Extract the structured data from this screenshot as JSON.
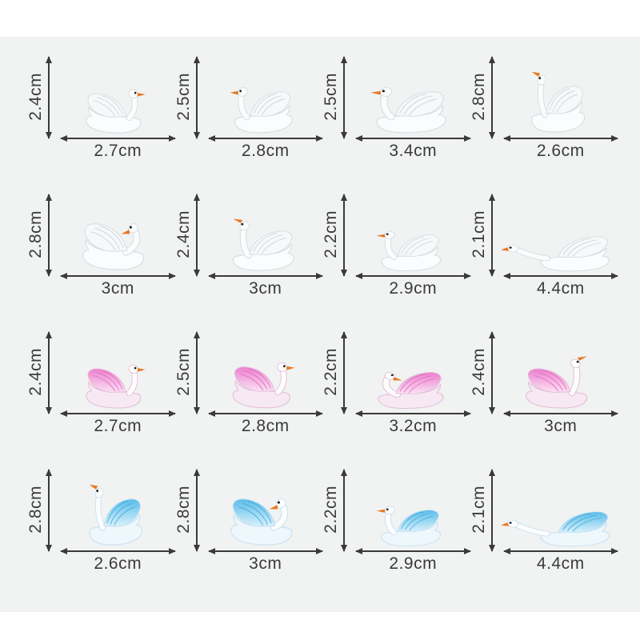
{
  "page": {
    "background": "#ffffff",
    "panel_background": "#f1f2f2"
  },
  "colors": {
    "label_text": "#3b3b3b",
    "arrow": "#3a3a3a",
    "beak_orange": "#e9751f",
    "eye_black": "#1b1b1b",
    "head_white": "#fdfdfe",
    "white_body": "#fbfcfd",
    "white_outline": "#d7dde1",
    "white_wing": "#f6f8fa",
    "white_feather": "#ccd4da",
    "pink_body": "#f6e9f3",
    "pink_outline": "#e3bed9",
    "pink_wing_top": "#ec7fce",
    "pink_wing_bottom": "#fbe2f3",
    "pink_feather": "#e06cc0",
    "blue_body": "#eef7fc",
    "blue_outline": "#c6e2f1",
    "blue_wing_top": "#58bce9",
    "blue_wing_bottom": "#daf1fb",
    "blue_feather": "#45abdd"
  },
  "figure": {
    "description": "Miniature swan figurine size chart, 4 x 4 grid with height and width dimensions",
    "unit": "cm",
    "rows": [
      {
        "variant": "white",
        "swans": [
          {
            "height_label": "2.4cm",
            "width_label": "2.7cm",
            "pose": "normal",
            "facing": "right"
          },
          {
            "height_label": "2.5cm",
            "width_label": "2.8cm",
            "pose": "normal",
            "facing": "left"
          },
          {
            "height_label": "2.5cm",
            "width_label": "3.4cm",
            "pose": "normal",
            "facing": "left"
          },
          {
            "height_label": "2.8cm",
            "width_label": "2.6cm",
            "pose": "headup",
            "facing": "left"
          }
        ]
      },
      {
        "variant": "white",
        "swans": [
          {
            "height_label": "2.8cm",
            "width_label": "3cm",
            "pose": "tucked",
            "facing": "right"
          },
          {
            "height_label": "2.4cm",
            "width_label": "3cm",
            "pose": "headup",
            "facing": "left"
          },
          {
            "height_label": "2.2cm",
            "width_label": "2.9cm",
            "pose": "normal",
            "facing": "left"
          },
          {
            "height_label": "2.1cm",
            "width_label": "4.4cm",
            "pose": "stretched",
            "facing": "left"
          }
        ]
      },
      {
        "variant": "pink",
        "swans": [
          {
            "height_label": "2.4cm",
            "width_label": "2.7cm",
            "pose": "normal",
            "facing": "right"
          },
          {
            "height_label": "2.5cm",
            "width_label": "2.8cm",
            "pose": "normal",
            "facing": "right"
          },
          {
            "height_label": "2.2cm",
            "width_label": "3.2cm",
            "pose": "tucked",
            "facing": "left"
          },
          {
            "height_label": "2.4cm",
            "width_label": "3cm",
            "pose": "headup",
            "facing": "right"
          }
        ]
      },
      {
        "variant": "blue",
        "swans": [
          {
            "height_label": "2.8cm",
            "width_label": "2.6cm",
            "pose": "headup",
            "facing": "left"
          },
          {
            "height_label": "2.8cm",
            "width_label": "3cm",
            "pose": "tucked",
            "facing": "right"
          },
          {
            "height_label": "2.2cm",
            "width_label": "2.9cm",
            "pose": "normal",
            "facing": "left"
          },
          {
            "height_label": "2.1cm",
            "width_label": "4.4cm",
            "pose": "stretched",
            "facing": "left"
          }
        ]
      }
    ]
  }
}
